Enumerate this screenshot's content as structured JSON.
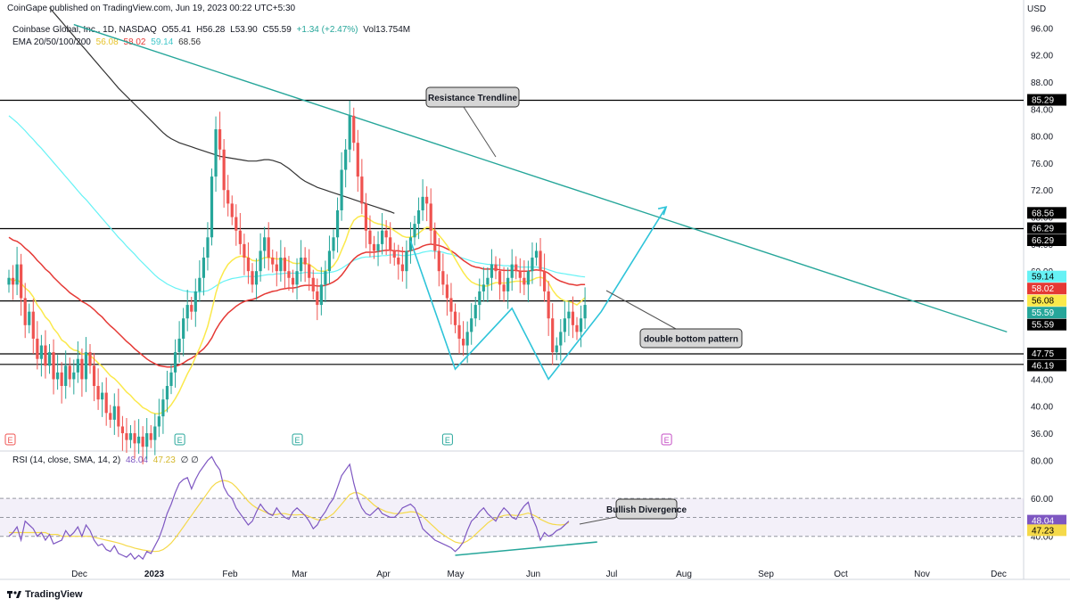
{
  "published": "CoinGape published on TradingView.com, Jun 19, 2023 00:22 UTC+5:30",
  "currency": "USD",
  "legend": {
    "symbol": "Coinbase Global, Inc., 1D, NASDAQ",
    "open": "O55.41",
    "high": "H56.28",
    "low": "L53.90",
    "close": "C55.59",
    "change": "+1.34 (+2.47%)",
    "volume": "Vol13.754M",
    "ema_label": "EMA 20/50/100/200",
    "ema_values": [
      "56.08",
      "58.02",
      "59.14",
      "68.56"
    ]
  },
  "rsi_legend": {
    "label": "RSI (14, close, SMA, 14, 2)",
    "rsi": "48.04",
    "sma": "47.23",
    "extra": "∅  ∅"
  },
  "annotations": {
    "resistance": "Resistance Trendline",
    "double_bottom": "double bottom pattern",
    "divergence": "Bullish Divergence"
  },
  "brand": "TradingView",
  "earnings_marker": "E",
  "colors": {
    "up": "#26a69a",
    "down": "#ef5350",
    "ema20": "#fbe94b",
    "ema50": "#e53935",
    "ema100": "#66f2f5",
    "ema200": "#333333",
    "trendline": "#26a69a",
    "pattern": "#2ec4d9",
    "rsi": "#7e57c2",
    "rsi_sma": "#f5d94a"
  },
  "chart_data": {
    "type": "candlestick",
    "price_axis": {
      "ticks": [
        96,
        92,
        88,
        84,
        80,
        76,
        72,
        68,
        64,
        60,
        56,
        52,
        48,
        44,
        40,
        36
      ],
      "range": [
        33.5,
        97.5
      ]
    },
    "x_axis_labels": [
      "Dec",
      "2023",
      "Feb",
      "Mar",
      "Apr",
      "May",
      "Jun",
      "Jul",
      "Aug",
      "Sep",
      "Oct",
      "Nov",
      "Dec"
    ],
    "price_labels": [
      {
        "text": "85.29",
        "value": 85.29,
        "style": "black"
      },
      {
        "text": "68.56",
        "value": 68.56,
        "style": "black"
      },
      {
        "text": "66.29",
        "value": 66.29,
        "style": "black"
      },
      {
        "text": "66.29",
        "value": 66.29,
        "style": "black"
      },
      {
        "text": "59.14",
        "value": 59.14,
        "style": "ema100"
      },
      {
        "text": "58.02",
        "value": 58.02,
        "style": "ema50"
      },
      {
        "text": "56.08",
        "value": 56.08,
        "style": "ema20"
      },
      {
        "text": "55.59",
        "value": 55.59,
        "style": "up"
      },
      {
        "text": "55.59",
        "value": 55.59,
        "style": "black"
      },
      {
        "text": "47.75",
        "value": 47.75,
        "style": "black"
      },
      {
        "text": "46.19",
        "value": 46.19,
        "style": "black"
      }
    ],
    "horizontal_levels": [
      85.29,
      66.29,
      55.59,
      47.75,
      46.19
    ],
    "closes": [
      59,
      58,
      61,
      56,
      52,
      54,
      50,
      47,
      49,
      46,
      48,
      44,
      45,
      43,
      46,
      44,
      45,
      47,
      44,
      48,
      46,
      43,
      41,
      42,
      39,
      38,
      40,
      37,
      36,
      35,
      36,
      34.5,
      35.5,
      34,
      36,
      35,
      37,
      38.5,
      41,
      43,
      45,
      48,
      50,
      53,
      55,
      54,
      57,
      59,
      62,
      65,
      74,
      81,
      78,
      72,
      70,
      68,
      66,
      64,
      62,
      60,
      58,
      60,
      63,
      65,
      62,
      61,
      60,
      62,
      60,
      59,
      58,
      60,
      62,
      61,
      59,
      57,
      55,
      58,
      60,
      63,
      65,
      69,
      75,
      78,
      83,
      79,
      74,
      70,
      66,
      64,
      63,
      64,
      66,
      65,
      63,
      62,
      61,
      60,
      63,
      65,
      67,
      69,
      71,
      70,
      66,
      63,
      60,
      58,
      56,
      54,
      52,
      50,
      49,
      51,
      53,
      55,
      57,
      58,
      59,
      61,
      60,
      58,
      57,
      59,
      61,
      60,
      59,
      58,
      60,
      62,
      63,
      60,
      57,
      53,
      48,
      49,
      51,
      53,
      54,
      52,
      51,
      53,
      55
    ],
    "ema20": [
      59,
      58.5,
      58.8,
      58.2,
      57.5,
      57,
      56.2,
      55,
      54.2,
      53.2,
      52.6,
      51.5,
      50.8,
      49.8,
      49.4,
      48.7,
      48.3,
      48.2,
      47.7,
      47.7,
      47.5,
      47,
      46.4,
      45.9,
      45.2,
      44.5,
      44.1,
      43.5,
      42.8,
      42.1,
      41.6,
      40.9,
      40.4,
      39.8,
      39.5,
      39.1,
      38.9,
      38.9,
      39.1,
      39.5,
      40.2,
      41.1,
      42.2,
      43.5,
      44.8,
      45.9,
      47.3,
      48.6,
      50.1,
      51.8,
      54.2,
      56.7,
      58.7,
      60,
      61,
      61.6,
      62,
      62.2,
      62.2,
      62,
      61.6,
      61.5,
      61.7,
      62,
      62,
      61.9,
      61.8,
      61.8,
      61.7,
      61.5,
      61.2,
      61.1,
      61.2,
      61.2,
      61,
      60.6,
      60.1,
      60,
      60,
      60.3,
      60.8,
      61.7,
      63.1,
      64.5,
      66.3,
      67.5,
      68,
      68.2,
      68,
      67.6,
      67.2,
      67,
      66.9,
      66.7,
      66.4,
      66,
      65.6,
      65.2,
      65,
      65,
      65.2,
      65.6,
      66.1,
      66.5,
      66.4,
      66,
      65.3,
      64.6,
      63.8,
      62.9,
      61.8,
      60.8,
      59.8,
      59,
      58.4,
      58.1,
      57.9,
      57.8,
      57.8,
      58.1,
      58.3,
      58.3,
      58.2,
      58.3,
      58.4,
      58.5,
      58.5,
      58.4,
      58.5,
      58.7,
      59,
      59.1,
      58.9,
      58.3,
      57.2,
      56.4,
      55.9,
      55.6,
      55.5,
      55.3,
      55,
      55.5,
      56.08
    ],
    "ema50": [
      65,
      64.6,
      64.4,
      64,
      63.4,
      62.9,
      62.3,
      61.6,
      61,
      60.3,
      59.8,
      59.1,
      58.5,
      57.9,
      57.4,
      56.8,
      56.4,
      56,
      55.5,
      55.2,
      54.8,
      54.3,
      53.7,
      53.2,
      52.5,
      51.9,
      51.4,
      50.8,
      50.2,
      49.6,
      49.1,
      48.5,
      48,
      47.5,
      47,
      46.6,
      46.3,
      46,
      45.9,
      45.8,
      45.8,
      45.9,
      46.1,
      46.4,
      46.8,
      47.1,
      47.5,
      48,
      48.5,
      49.2,
      50.1,
      51.3,
      52.3,
      53.1,
      53.8,
      54.3,
      54.8,
      55.2,
      55.5,
      55.7,
      55.8,
      56,
      56.3,
      56.6,
      56.8,
      57,
      57.1,
      57.3,
      57.4,
      57.5,
      57.5,
      57.6,
      57.8,
      57.9,
      57.9,
      57.9,
      57.8,
      57.8,
      57.9,
      58.1,
      58.4,
      58.8,
      59.4,
      60.2,
      61.1,
      61.8,
      62.3,
      62.6,
      62.8,
      62.8,
      62.8,
      62.9,
      63,
      63.1,
      63.1,
      63,
      63,
      62.9,
      62.9,
      63,
      63.2,
      63.4,
      63.7,
      63.9,
      64,
      63.9,
      63.8,
      63.6,
      63.3,
      63,
      62.6,
      62.1,
      61.6,
      61.2,
      60.8,
      60.6,
      60.5,
      60.3,
      60.3,
      60.3,
      60.3,
      60.2,
      60.1,
      60.1,
      60.1,
      60.1,
      60,
      60,
      60,
      60.1,
      60.2,
      60.1,
      60,
      59.7,
      59.2,
      58.8,
      58.5,
      58.3,
      58.1,
      58,
      57.9,
      58,
      58.02
    ],
    "ema100": [
      83,
      82.5,
      82,
      81.4,
      80.8,
      80.1,
      79.5,
      78.8,
      78.2,
      77.5,
      76.8,
      76.1,
      75.4,
      74.7,
      74,
      73.3,
      72.6,
      71.9,
      71.2,
      70.6,
      69.9,
      69.2,
      68.5,
      67.8,
      67.1,
      66.4,
      65.7,
      65,
      64.4,
      63.7,
      63.1,
      62.5,
      61.8,
      61.2,
      60.6,
      60,
      59.4,
      58.9,
      58.5,
      58.1,
      57.8,
      57.5,
      57.3,
      57.1,
      57,
      56.9,
      56.9,
      56.9,
      57,
      57.1,
      57.4,
      57.8,
      58.2,
      58.5,
      58.7,
      58.9,
      59,
      59.1,
      59.2,
      59.2,
      59.2,
      59.2,
      59.3,
      59.4,
      59.5,
      59.5,
      59.6,
      59.6,
      59.7,
      59.7,
      59.7,
      59.7,
      59.7,
      59.8,
      59.8,
      59.7,
      59.7,
      59.7,
      59.7,
      59.8,
      59.9,
      60.1,
      60.4,
      60.8,
      61.2,
      61.6,
      61.8,
      62,
      62.1,
      62.1,
      62.2,
      62.2,
      62.3,
      62.3,
      62.4,
      62.4,
      62.4,
      62.3,
      62.3,
      62.4,
      62.5,
      62.6,
      62.8,
      62.9,
      63,
      62.9,
      62.9,
      62.8,
      62.6,
      62.5,
      62.3,
      62.1,
      61.9,
      61.7,
      61.5,
      61.3,
      61.2,
      61.1,
      61,
      61,
      60.9,
      60.9,
      60.8,
      60.8,
      60.7,
      60.7,
      60.6,
      60.6,
      60.6,
      60.6,
      60.6,
      60.5,
      60.4,
      60.2,
      60,
      59.8,
      59.7,
      59.6,
      59.5,
      59.4,
      59.3,
      59.2,
      59.14
    ],
    "ema200_start_index": 10,
    "ema200": [
      99,
      98.3,
      97.6,
      96.9,
      96.2,
      95.5,
      94.8,
      94.1,
      93.4,
      92.7,
      92,
      91.3,
      90.6,
      89.9,
      89.2,
      88.5,
      87.8,
      87.1,
      86.5,
      85.9,
      85.3,
      84.7,
      84.1,
      83.5,
      82.9,
      82.3,
      81.7,
      81.1,
      80.5,
      80,
      79.6,
      79.3,
      79,
      78.8,
      78.6,
      78.4,
      78.2,
      78,
      77.8,
      77.6,
      77.4,
      77.2,
      77,
      76.9,
      76.8,
      76.7,
      76.6,
      76.5,
      76.4,
      76.3,
      76.3,
      76.3,
      76.4,
      76.5,
      76.5,
      76.4,
      76.2,
      76,
      75.6,
      75.2,
      74.7,
      74.2,
      73.7,
      73.3,
      73,
      72.7,
      72.4,
      72.2,
      72,
      71.8,
      71.6,
      71.4,
      71.2,
      71,
      70.8,
      70.6,
      70.4,
      70.2,
      70,
      69.8,
      69.6,
      69.4,
      69.2,
      69,
      68.8,
      68.56
    ],
    "rsi_axis": {
      "ticks": [
        80,
        60,
        40
      ],
      "range": [
        22,
        85
      ]
    },
    "rsi_band": [
      40,
      60
    ],
    "rsi_mid": 50,
    "rsi": [
      40,
      42,
      45,
      38,
      48,
      46,
      44,
      40,
      42,
      38,
      41,
      36,
      37,
      38,
      43,
      40,
      42,
      45,
      40,
      46,
      43,
      38,
      35,
      36,
      33,
      32,
      35,
      31,
      30,
      29,
      31,
      28,
      30,
      28,
      32,
      31,
      35,
      39,
      45,
      52,
      57,
      63,
      68,
      70,
      71,
      65,
      70,
      74,
      77,
      80,
      82,
      78,
      75,
      66,
      62,
      60,
      55,
      52,
      49,
      46,
      48,
      53,
      57,
      54,
      52,
      51,
      55,
      52,
      50,
      49,
      53,
      55,
      53,
      51,
      48,
      44,
      46,
      50,
      53,
      57,
      60,
      66,
      72,
      75,
      78,
      68,
      60,
      55,
      52,
      51,
      53,
      55,
      52,
      51,
      50,
      50,
      52,
      55,
      56,
      57,
      55,
      50,
      44,
      42,
      40,
      38,
      37,
      36,
      35,
      34,
      32,
      34,
      37,
      43,
      48,
      50,
      53,
      55,
      52,
      50,
      48,
      52,
      55,
      53,
      50,
      49,
      53,
      56,
      58,
      50,
      45,
      38,
      42,
      40,
      41,
      43,
      44,
      46,
      48
    ],
    "rsi_sma": [
      42,
      42,
      42,
      42,
      42,
      42,
      42,
      42,
      42,
      42,
      41,
      41,
      41,
      40,
      40,
      40,
      40,
      40,
      40,
      40,
      40,
      39.5,
      39,
      38.5,
      38,
      37.5,
      37,
      36.5,
      35.8,
      35,
      34.5,
      33.8,
      33.3,
      32.8,
      32.5,
      32.2,
      32,
      32.2,
      33,
      34.5,
      36.5,
      39,
      42,
      45,
      48,
      51,
      54,
      57,
      60,
      63,
      66,
      68,
      69,
      69.5,
      69,
      68,
      66,
      63.5,
      61,
      58.5,
      56.5,
      55,
      54,
      53,
      52,
      51.5,
      51.5,
      52,
      52,
      51.5,
      51.3,
      51.3,
      51.5,
      51.3,
      50.5,
      49.5,
      48.8,
      48.5,
      49,
      50.5,
      52,
      54.5,
      57,
      59.5,
      62,
      63,
      63,
      62,
      60.5,
      58.5,
      56.5,
      55,
      54,
      53,
      52.5,
      52,
      52,
      52.3,
      52.6,
      53,
      52.8,
      52,
      50.5,
      48.5,
      46.5,
      44.5,
      42.5,
      41,
      39.5,
      38.2,
      37,
      36.5,
      36.5,
      37.5,
      39,
      41,
      43,
      45,
      47,
      48.5,
      49.5,
      50.3,
      51,
      51.3,
      51.2,
      51,
      51.2,
      51.7,
      52.3,
      51.5,
      50.5,
      49,
      48,
      47,
      46.4,
      46.1,
      46,
      46.3,
      47.23
    ],
    "earnings_index": [
      0,
      42,
      71,
      108,
      162
    ]
  }
}
